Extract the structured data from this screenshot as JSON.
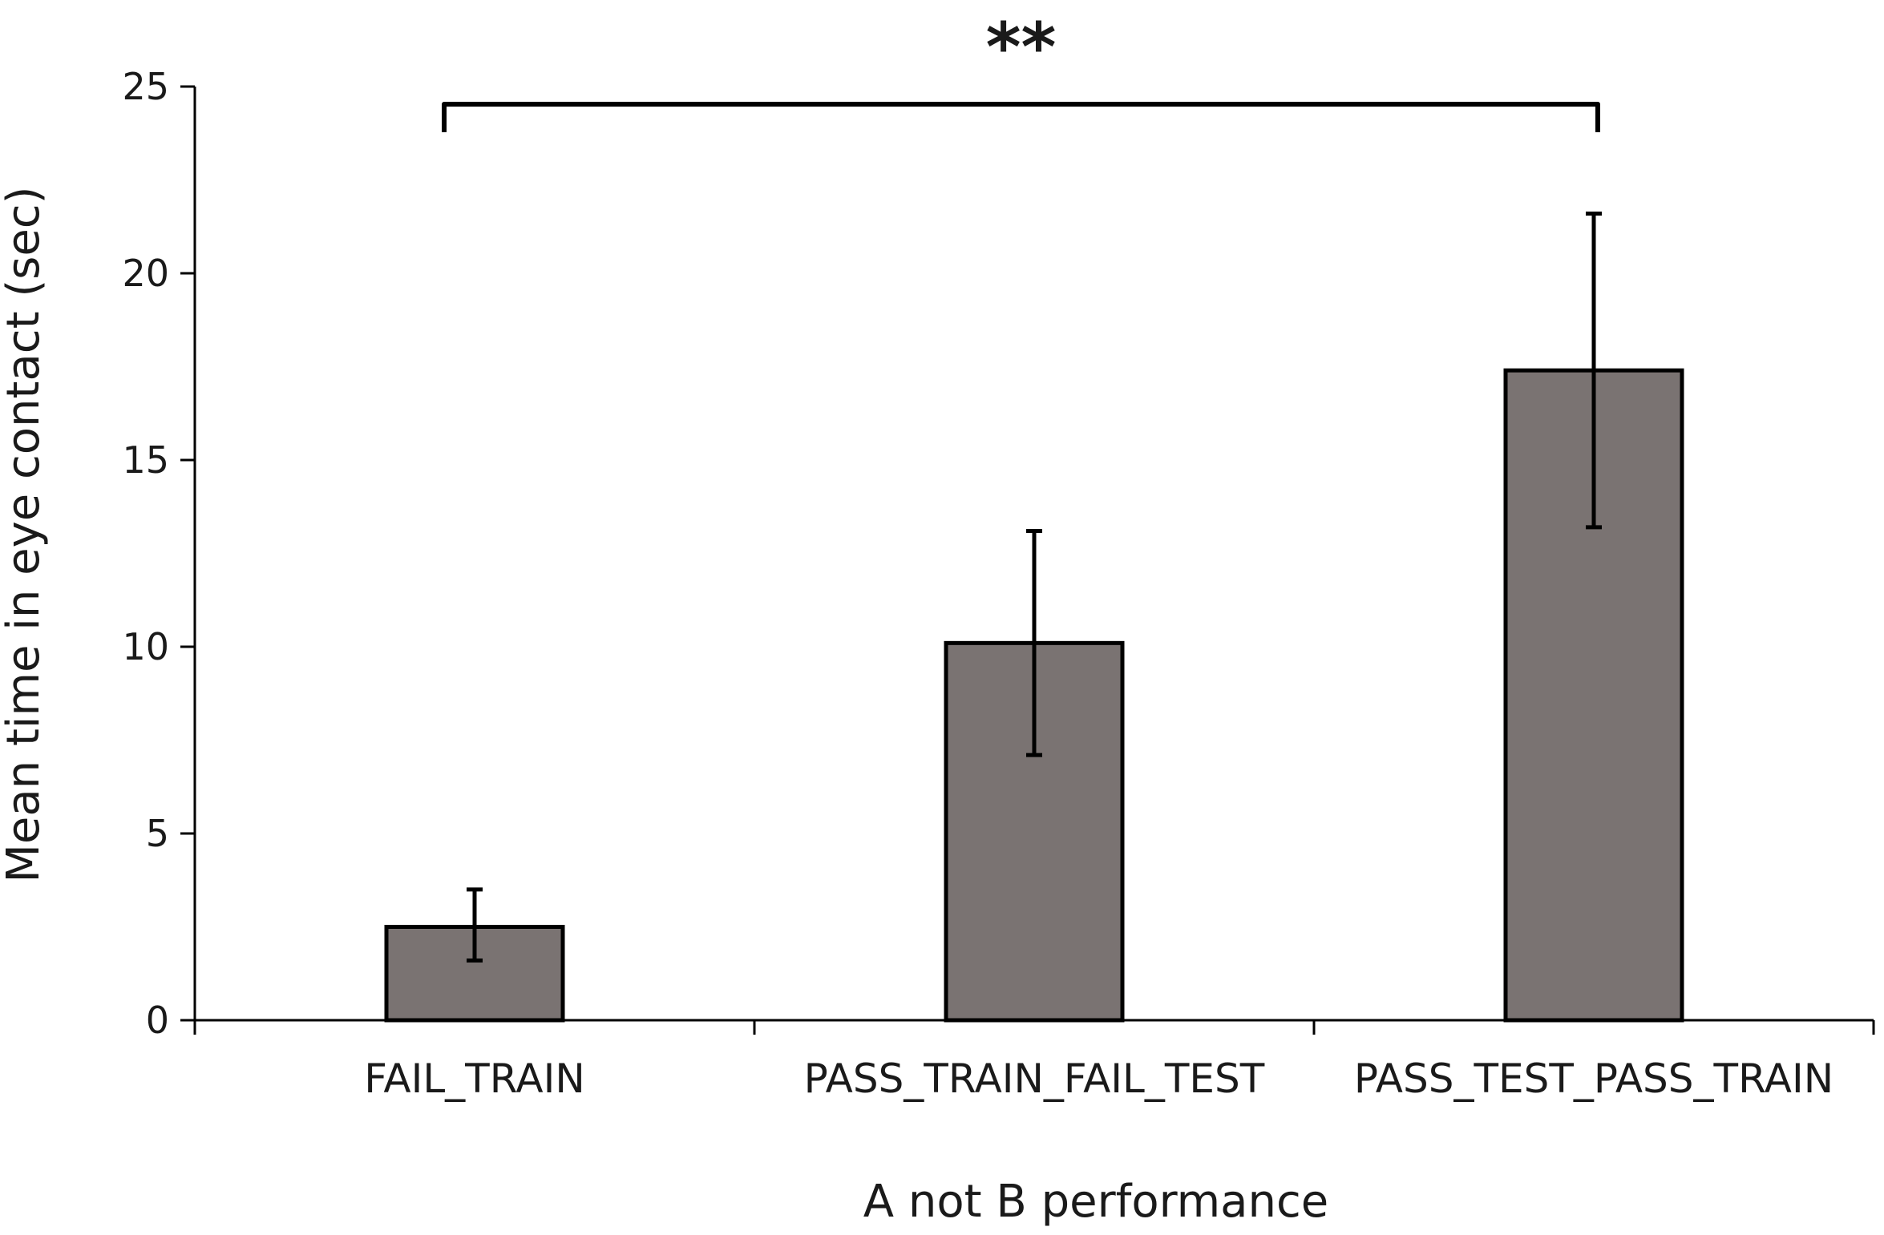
{
  "chart_data": {
    "type": "bar",
    "categories": [
      "FAIL_TRAIN",
      "PASS_TRAIN_FAIL_TEST",
      "PASS_TEST_PASS_TRAIN"
    ],
    "values": [
      2.5,
      10.1,
      17.4
    ],
    "error_low": [
      1.6,
      7.1,
      13.2
    ],
    "error_high": [
      3.5,
      13.1,
      21.6
    ],
    "xlabel": "A not B performance",
    "ylabel": "Mean time in eye contact (sec)",
    "ylim": [
      0,
      25
    ],
    "yticks": [
      0,
      5,
      10,
      15,
      20,
      25
    ],
    "ytick_labels": [
      "0",
      "5",
      "10",
      "15",
      "20",
      "25"
    ],
    "grid": false,
    "bar_color": "#7a7372",
    "significance": {
      "label": "**",
      "from_category": 0,
      "to_category": 2
    }
  }
}
